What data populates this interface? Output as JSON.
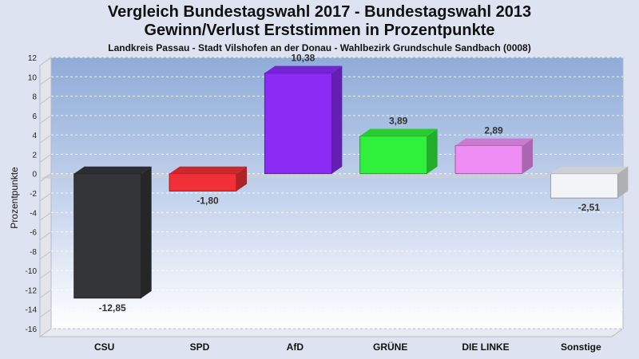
{
  "chart_data": {
    "type": "bar",
    "title": "Vergleich Bundestagswahl 2017 - Bundestagswahl 2013",
    "subtitle": "Gewinn/Verlust Erststimmen in Prozentpunkte",
    "caption": "Landkreis Passau - Stadt Vilshofen an der Donau - Wahlbezirk  Grundschule Sandbach (0008)",
    "ylabel": "Prozentpunkte",
    "xlabel": "",
    "ylim": [
      -16,
      12
    ],
    "yticks": [
      12,
      10,
      8,
      6,
      4,
      2,
      0,
      -2,
      -4,
      -6,
      -8,
      -10,
      -12,
      -14,
      -16
    ],
    "grid": true,
    "categories": [
      "CSU",
      "SPD",
      "AfD",
      "GRÜNE",
      "DIE LINKE",
      "Sonstige"
    ],
    "values": [
      -12.85,
      -1.8,
      10.38,
      3.89,
      2.89,
      -2.51
    ],
    "value_labels": [
      "-12,85",
      "-1,80",
      "10,38",
      "3,89",
      "2,89",
      "-2,51"
    ],
    "colors": [
      "#333538",
      "#f03036",
      "#8a2cf4",
      "#2ff03a",
      "#ee8ef5",
      "#f2f4f8"
    ]
  }
}
